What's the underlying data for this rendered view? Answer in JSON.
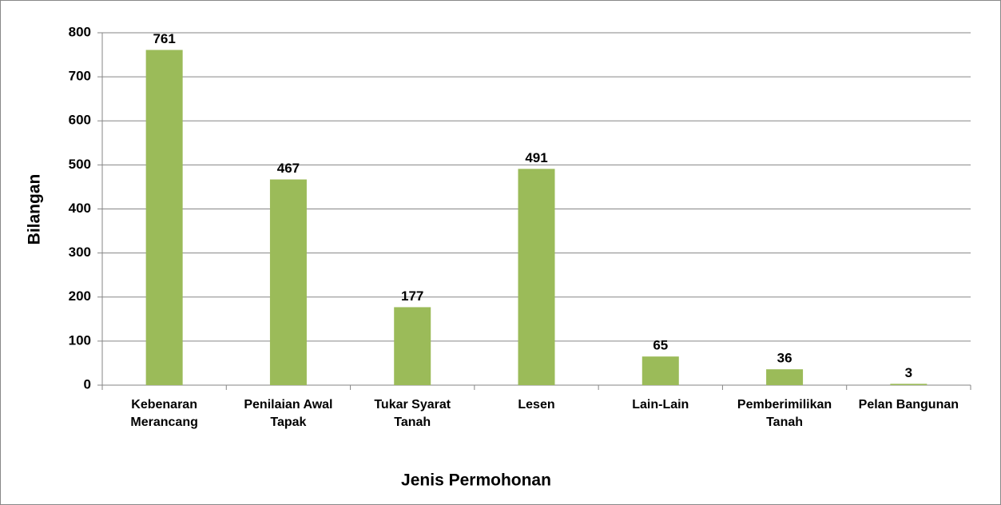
{
  "chart_data": {
    "type": "bar",
    "x_label": "Jenis Permohonan",
    "y_label": "Bilangan",
    "categories": [
      "Kebenaran Merancang",
      "Penilaian Awal Tapak",
      "Tukar Syarat Tanah",
      "Lesen",
      "Lain-Lain",
      "Pemberimilikan Tanah",
      "Pelan Bangunan"
    ],
    "values": [
      761,
      467,
      177,
      491,
      65,
      36,
      3
    ],
    "color": "#9bbb59",
    "ylim": [
      0,
      800
    ],
    "yticks": [
      0,
      100,
      200,
      300,
      400,
      500,
      600,
      700,
      800
    ],
    "grid": true
  }
}
